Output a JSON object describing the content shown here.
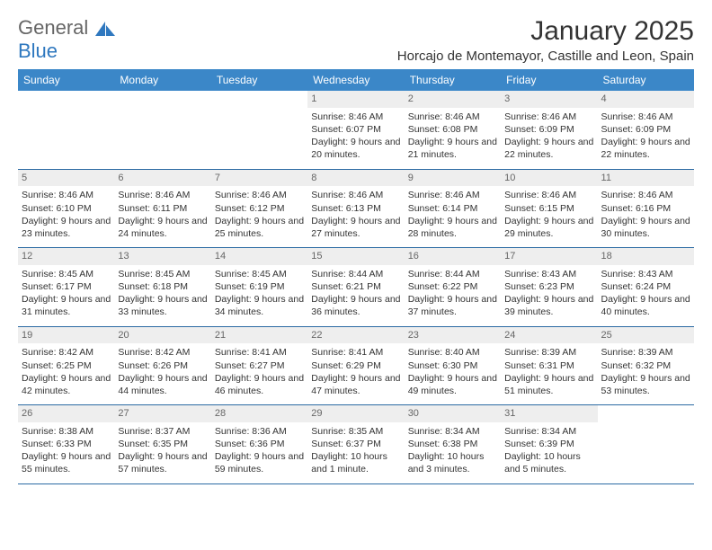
{
  "logo": {
    "line1": "General",
    "line2": "Blue"
  },
  "header": {
    "month_title": "January 2025",
    "location": "Horcajo de Montemayor, Castille and Leon, Spain"
  },
  "colors": {
    "header_bg": "#3b87c8",
    "header_text": "#ffffff",
    "daynum_bg": "#eeeeee",
    "daynum_text": "#666666",
    "rule": "#2b6aa3",
    "logo_blue": "#2f78bf"
  },
  "weekdays": [
    "Sunday",
    "Monday",
    "Tuesday",
    "Wednesday",
    "Thursday",
    "Friday",
    "Saturday"
  ],
  "weeks": [
    [
      null,
      null,
      null,
      {
        "n": "1",
        "sunrise": "8:46 AM",
        "sunset": "6:07 PM",
        "day_h": "9",
        "day_m": "20"
      },
      {
        "n": "2",
        "sunrise": "8:46 AM",
        "sunset": "6:08 PM",
        "day_h": "9",
        "day_m": "21"
      },
      {
        "n": "3",
        "sunrise": "8:46 AM",
        "sunset": "6:09 PM",
        "day_h": "9",
        "day_m": "22"
      },
      {
        "n": "4",
        "sunrise": "8:46 AM",
        "sunset": "6:09 PM",
        "day_h": "9",
        "day_m": "22"
      }
    ],
    [
      {
        "n": "5",
        "sunrise": "8:46 AM",
        "sunset": "6:10 PM",
        "day_h": "9",
        "day_m": "23"
      },
      {
        "n": "6",
        "sunrise": "8:46 AM",
        "sunset": "6:11 PM",
        "day_h": "9",
        "day_m": "24"
      },
      {
        "n": "7",
        "sunrise": "8:46 AM",
        "sunset": "6:12 PM",
        "day_h": "9",
        "day_m": "25"
      },
      {
        "n": "8",
        "sunrise": "8:46 AM",
        "sunset": "6:13 PM",
        "day_h": "9",
        "day_m": "27"
      },
      {
        "n": "9",
        "sunrise": "8:46 AM",
        "sunset": "6:14 PM",
        "day_h": "9",
        "day_m": "28"
      },
      {
        "n": "10",
        "sunrise": "8:46 AM",
        "sunset": "6:15 PM",
        "day_h": "9",
        "day_m": "29"
      },
      {
        "n": "11",
        "sunrise": "8:46 AM",
        "sunset": "6:16 PM",
        "day_h": "9",
        "day_m": "30"
      }
    ],
    [
      {
        "n": "12",
        "sunrise": "8:45 AM",
        "sunset": "6:17 PM",
        "day_h": "9",
        "day_m": "31"
      },
      {
        "n": "13",
        "sunrise": "8:45 AM",
        "sunset": "6:18 PM",
        "day_h": "9",
        "day_m": "33"
      },
      {
        "n": "14",
        "sunrise": "8:45 AM",
        "sunset": "6:19 PM",
        "day_h": "9",
        "day_m": "34"
      },
      {
        "n": "15",
        "sunrise": "8:44 AM",
        "sunset": "6:21 PM",
        "day_h": "9",
        "day_m": "36"
      },
      {
        "n": "16",
        "sunrise": "8:44 AM",
        "sunset": "6:22 PM",
        "day_h": "9",
        "day_m": "37"
      },
      {
        "n": "17",
        "sunrise": "8:43 AM",
        "sunset": "6:23 PM",
        "day_h": "9",
        "day_m": "39"
      },
      {
        "n": "18",
        "sunrise": "8:43 AM",
        "sunset": "6:24 PM",
        "day_h": "9",
        "day_m": "40"
      }
    ],
    [
      {
        "n": "19",
        "sunrise": "8:42 AM",
        "sunset": "6:25 PM",
        "day_h": "9",
        "day_m": "42"
      },
      {
        "n": "20",
        "sunrise": "8:42 AM",
        "sunset": "6:26 PM",
        "day_h": "9",
        "day_m": "44"
      },
      {
        "n": "21",
        "sunrise": "8:41 AM",
        "sunset": "6:27 PM",
        "day_h": "9",
        "day_m": "46"
      },
      {
        "n": "22",
        "sunrise": "8:41 AM",
        "sunset": "6:29 PM",
        "day_h": "9",
        "day_m": "47"
      },
      {
        "n": "23",
        "sunrise": "8:40 AM",
        "sunset": "6:30 PM",
        "day_h": "9",
        "day_m": "49"
      },
      {
        "n": "24",
        "sunrise": "8:39 AM",
        "sunset": "6:31 PM",
        "day_h": "9",
        "day_m": "51"
      },
      {
        "n": "25",
        "sunrise": "8:39 AM",
        "sunset": "6:32 PM",
        "day_h": "9",
        "day_m": "53"
      }
    ],
    [
      {
        "n": "26",
        "sunrise": "8:38 AM",
        "sunset": "6:33 PM",
        "day_h": "9",
        "day_m": "55"
      },
      {
        "n": "27",
        "sunrise": "8:37 AM",
        "sunset": "6:35 PM",
        "day_h": "9",
        "day_m": "57"
      },
      {
        "n": "28",
        "sunrise": "8:36 AM",
        "sunset": "6:36 PM",
        "day_h": "9",
        "day_m": "59"
      },
      {
        "n": "29",
        "sunrise": "8:35 AM",
        "sunset": "6:37 PM",
        "day_h": "10",
        "day_m": "1",
        "singular": true
      },
      {
        "n": "30",
        "sunrise": "8:34 AM",
        "sunset": "6:38 PM",
        "day_h": "10",
        "day_m": "3"
      },
      {
        "n": "31",
        "sunrise": "8:34 AM",
        "sunset": "6:39 PM",
        "day_h": "10",
        "day_m": "5"
      },
      null
    ]
  ],
  "labels": {
    "sunrise": "Sunrise:",
    "sunset": "Sunset:",
    "daylight": "Daylight:",
    "hours": "hours",
    "and": "and",
    "minutes": "minutes.",
    "minute": "minute."
  }
}
